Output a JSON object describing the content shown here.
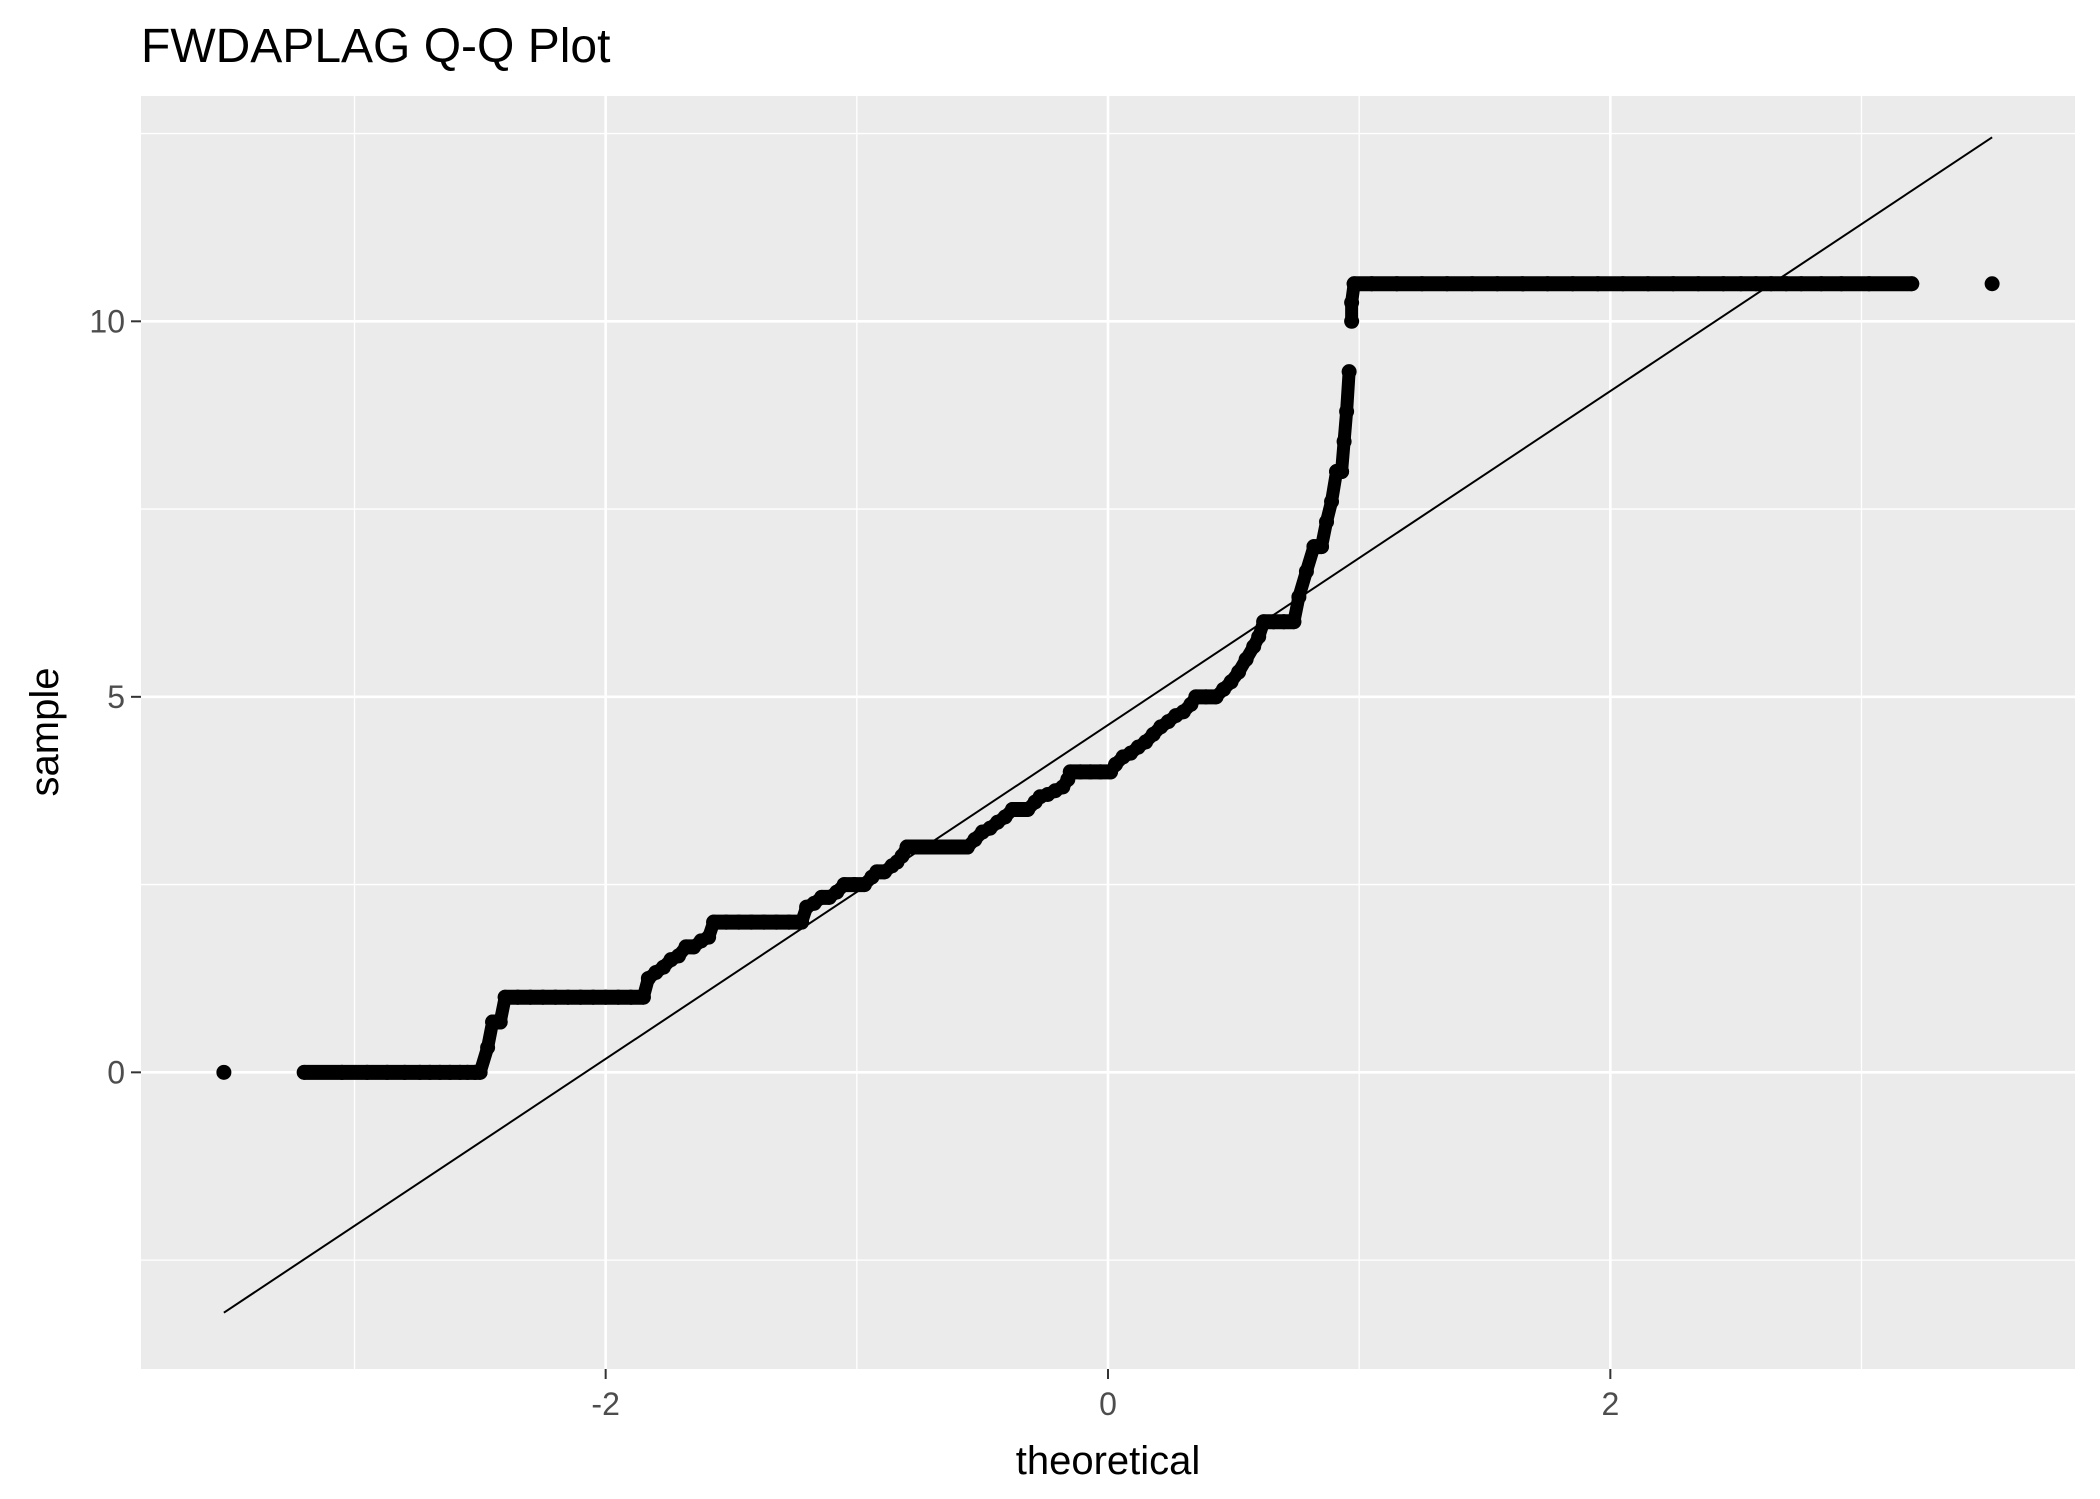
{
  "chart_data": {
    "type": "scatter",
    "title": "FWDAPLAG Q-Q Plot",
    "xlabel": "theoretical",
    "ylabel": "sample",
    "xlim": [
      -3.85,
      3.85
    ],
    "ylim": [
      -3.95,
      13.0
    ],
    "x_ticks": [
      -2,
      0,
      2
    ],
    "x_tick_labels": [
      "-2",
      "0",
      "2"
    ],
    "y_ticks": [
      0,
      5,
      10
    ],
    "y_tick_labels": [
      "0",
      "5",
      "10"
    ],
    "grid": true,
    "legend": "none",
    "colors": {
      "panel": "#ebebeb",
      "grid": "#ffffff",
      "points": "#000000",
      "line": "#000000",
      "tick_text": "#4d4d4d"
    },
    "reference_line": {
      "x": [
        -3.52,
        3.52
      ],
      "y": [
        -3.2,
        12.45
      ]
    },
    "series": [
      {
        "points": [
          [
            -3.52,
            0.0
          ],
          [
            -3.2,
            0.0
          ],
          [
            -3.05,
            0.0
          ],
          [
            -2.95,
            0.0
          ],
          [
            -2.87,
            0.0
          ],
          [
            -2.8,
            0.0
          ],
          [
            -2.74,
            0.0
          ],
          [
            -2.7,
            0.0
          ],
          [
            -2.66,
            0.0
          ],
          [
            -2.62,
            0.0
          ],
          [
            -2.58,
            0.0
          ],
          [
            -2.55,
            0.0
          ],
          [
            -2.52,
            0.0
          ],
          [
            -2.5,
            0.0
          ],
          [
            -2.47,
            0.33
          ],
          [
            -2.45,
            0.67
          ],
          [
            -2.42,
            0.67
          ],
          [
            -2.4,
            1.0
          ],
          [
            -2.35,
            1.0
          ],
          [
            -2.3,
            1.0
          ],
          [
            -2.25,
            1.0
          ],
          [
            -2.2,
            1.0
          ],
          [
            -2.15,
            1.0
          ],
          [
            -2.1,
            1.0
          ],
          [
            -2.05,
            1.0
          ],
          [
            -2.0,
            1.0
          ],
          [
            -1.95,
            1.0
          ],
          [
            -1.9,
            1.0
          ],
          [
            -1.85,
            1.0
          ],
          [
            -1.83,
            1.25
          ],
          [
            -1.8,
            1.33
          ],
          [
            -1.77,
            1.4
          ],
          [
            -1.74,
            1.5
          ],
          [
            -1.71,
            1.55
          ],
          [
            -1.68,
            1.67
          ],
          [
            -1.65,
            1.67
          ],
          [
            -1.62,
            1.75
          ],
          [
            -1.59,
            1.8
          ],
          [
            -1.57,
            2.0
          ],
          [
            -1.52,
            2.0
          ],
          [
            -1.47,
            2.0
          ],
          [
            -1.42,
            2.0
          ],
          [
            -1.37,
            2.0
          ],
          [
            -1.32,
            2.0
          ],
          [
            -1.27,
            2.0
          ],
          [
            -1.22,
            2.0
          ],
          [
            -1.2,
            2.2
          ],
          [
            -1.17,
            2.25
          ],
          [
            -1.14,
            2.33
          ],
          [
            -1.11,
            2.33
          ],
          [
            -1.08,
            2.4
          ],
          [
            -1.05,
            2.5
          ],
          [
            -1.01,
            2.5
          ],
          [
            -0.97,
            2.5
          ],
          [
            -0.94,
            2.6
          ],
          [
            -0.92,
            2.67
          ],
          [
            -0.89,
            2.67
          ],
          [
            -0.86,
            2.75
          ],
          [
            -0.84,
            2.8
          ],
          [
            -0.82,
            2.88
          ],
          [
            -0.8,
            3.0
          ],
          [
            -0.76,
            3.0
          ],
          [
            -0.72,
            3.0
          ],
          [
            -0.68,
            3.0
          ],
          [
            -0.64,
            3.0
          ],
          [
            -0.6,
            3.0
          ],
          [
            -0.56,
            3.0
          ],
          [
            -0.53,
            3.1
          ],
          [
            -0.5,
            3.2
          ],
          [
            -0.47,
            3.25
          ],
          [
            -0.44,
            3.33
          ],
          [
            -0.41,
            3.4
          ],
          [
            -0.38,
            3.5
          ],
          [
            -0.35,
            3.5
          ],
          [
            -0.32,
            3.5
          ],
          [
            -0.29,
            3.6
          ],
          [
            -0.27,
            3.67
          ],
          [
            -0.24,
            3.7
          ],
          [
            -0.21,
            3.75
          ],
          [
            -0.18,
            3.8
          ],
          [
            -0.16,
            3.9
          ],
          [
            -0.15,
            4.0
          ],
          [
            -0.11,
            4.0
          ],
          [
            -0.07,
            4.0
          ],
          [
            -0.03,
            4.0
          ],
          [
            0.01,
            4.0
          ],
          [
            0.03,
            4.1
          ],
          [
            0.06,
            4.2
          ],
          [
            0.09,
            4.25
          ],
          [
            0.12,
            4.33
          ],
          [
            0.15,
            4.4
          ],
          [
            0.18,
            4.5
          ],
          [
            0.21,
            4.6
          ],
          [
            0.24,
            4.67
          ],
          [
            0.27,
            4.75
          ],
          [
            0.3,
            4.8
          ],
          [
            0.33,
            4.9
          ],
          [
            0.35,
            5.0
          ],
          [
            0.39,
            5.0
          ],
          [
            0.43,
            5.0
          ],
          [
            0.46,
            5.1
          ],
          [
            0.49,
            5.2
          ],
          [
            0.52,
            5.33
          ],
          [
            0.55,
            5.5
          ],
          [
            0.58,
            5.67
          ],
          [
            0.6,
            5.8
          ],
          [
            0.62,
            6.0
          ],
          [
            0.66,
            6.0
          ],
          [
            0.7,
            6.0
          ],
          [
            0.74,
            6.0
          ],
          [
            0.76,
            6.33
          ],
          [
            0.79,
            6.67
          ],
          [
            0.82,
            7.0
          ],
          [
            0.85,
            7.0
          ],
          [
            0.87,
            7.33
          ],
          [
            0.89,
            7.6
          ],
          [
            0.91,
            8.0
          ],
          [
            0.93,
            8.0
          ],
          [
            0.94,
            8.4
          ],
          [
            0.95,
            8.8
          ],
          [
            0.96,
            9.33
          ],
          [
            0.97,
            10.0
          ],
          [
            0.97,
            10.25
          ],
          [
            0.98,
            10.5
          ],
          [
            1.05,
            10.5
          ],
          [
            1.15,
            10.5
          ],
          [
            1.25,
            10.5
          ],
          [
            1.35,
            10.5
          ],
          [
            1.45,
            10.5
          ],
          [
            1.55,
            10.5
          ],
          [
            1.65,
            10.5
          ],
          [
            1.75,
            10.5
          ],
          [
            1.85,
            10.5
          ],
          [
            1.95,
            10.5
          ],
          [
            2.05,
            10.5
          ],
          [
            2.15,
            10.5
          ],
          [
            2.25,
            10.5
          ],
          [
            2.35,
            10.5
          ],
          [
            2.45,
            10.5
          ],
          [
            2.52,
            10.5
          ],
          [
            2.58,
            10.5
          ],
          [
            2.64,
            10.5
          ],
          [
            2.7,
            10.5
          ],
          [
            2.76,
            10.5
          ],
          [
            2.84,
            10.5
          ],
          [
            2.92,
            10.5
          ],
          [
            3.03,
            10.5
          ],
          [
            3.2,
            10.5
          ],
          [
            3.52,
            10.5
          ]
        ]
      }
    ]
  }
}
